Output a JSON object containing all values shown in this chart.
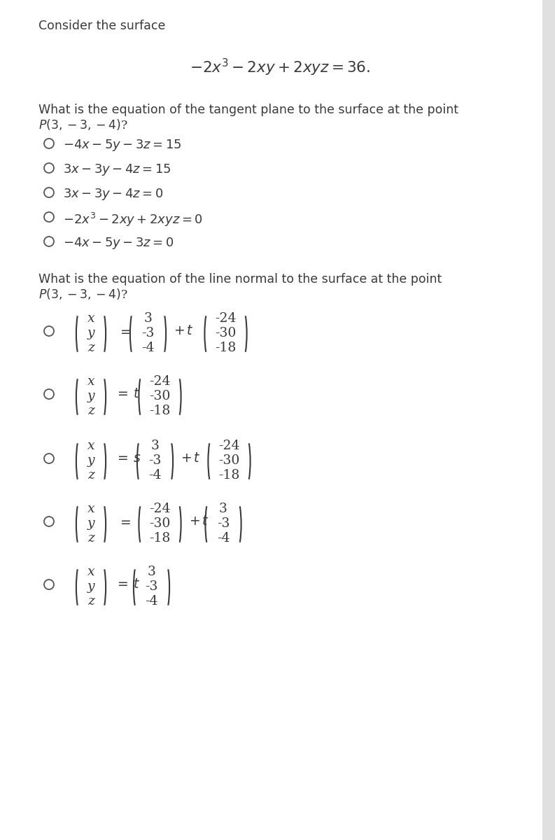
{
  "bg_color": "#ffffff",
  "text_color": "#3a3a3a",
  "title_text": "Consider the surface",
  "surface_eq": "$-2x^3 - 2xy + 2xyz = 36.$",
  "q1_options": [
    "$-4x - 5y - 3z = 15$",
    "$3x - 3y - 4z = 15$",
    "$3x - 3y - 4z = 0$",
    "$-2x^3 - 2xy + 2xyz = 0$",
    "$-4x - 5y - 3z = 0$"
  ],
  "scrollbar_color": "#c8c8c8",
  "circle_color": "#555555",
  "font_size_body": 12.5,
  "font_size_eq": 15.5,
  "font_size_opt": 13.0,
  "font_size_vec": 13.5
}
